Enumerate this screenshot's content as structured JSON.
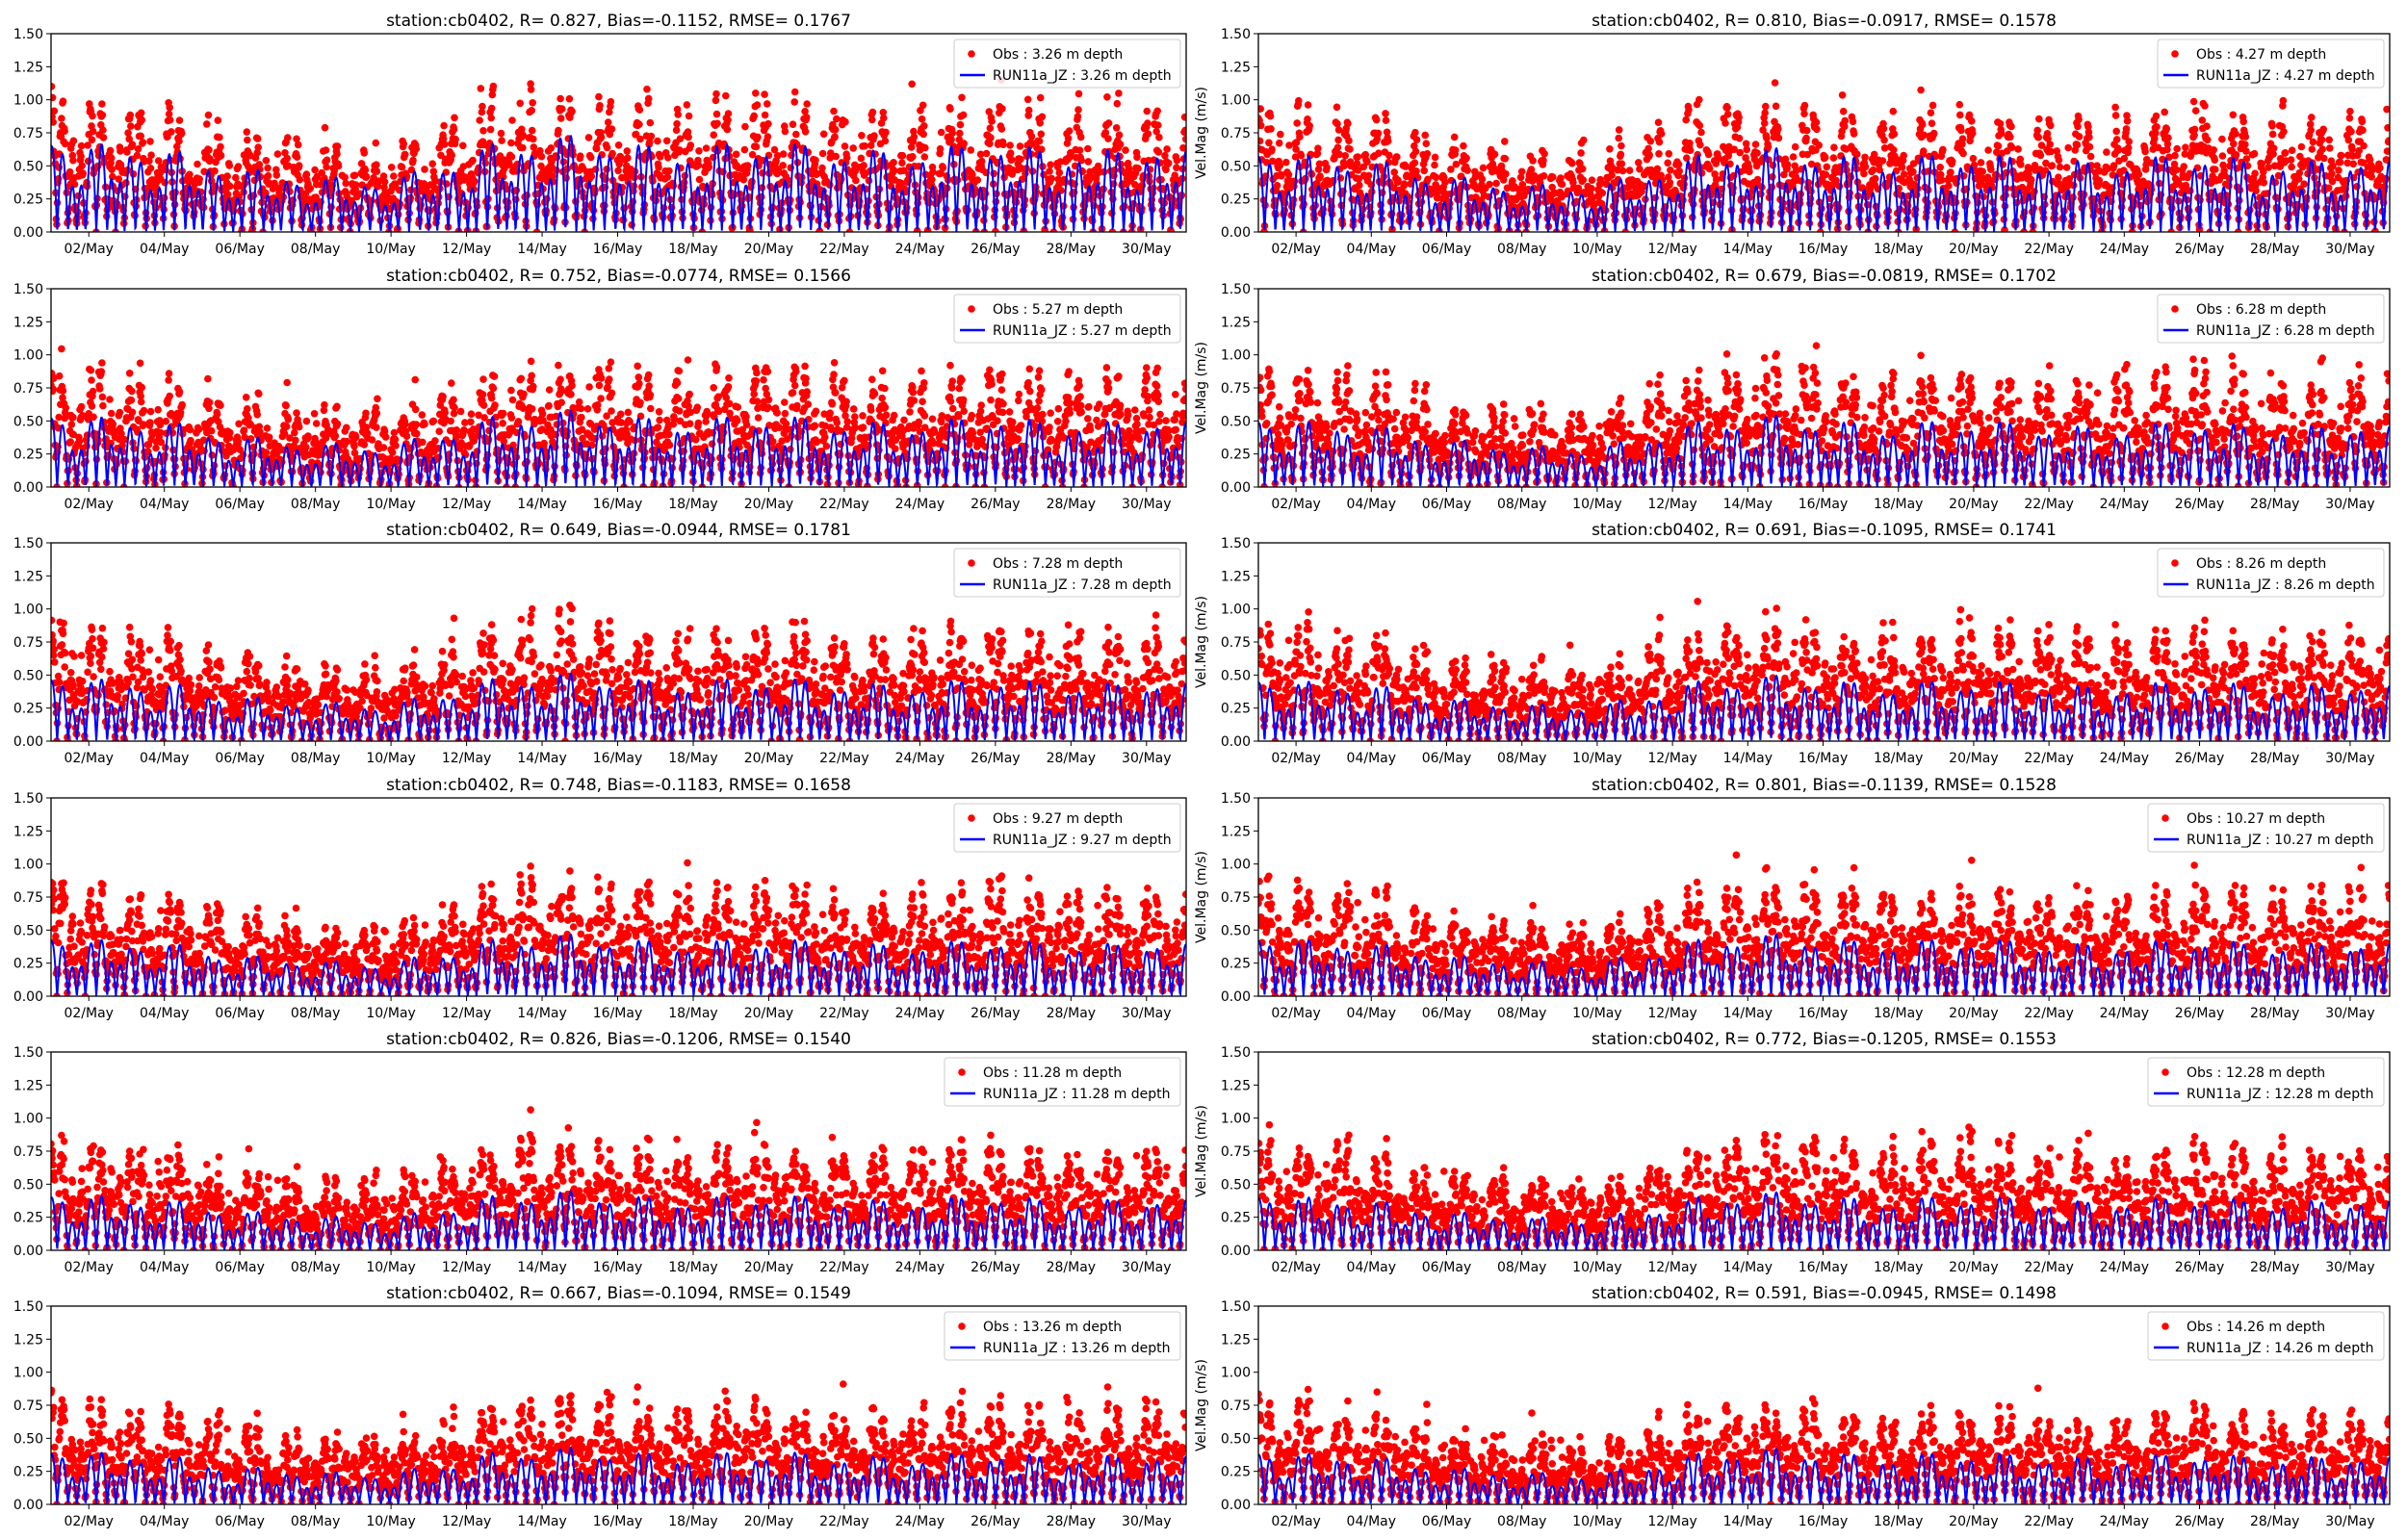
{
  "chart_data": {
    "type": "scatter+line",
    "layout": "6 rows x 2 columns",
    "station": "cb0402",
    "xlim_day_of_may": [
      1.0,
      31.05
    ],
    "x_tick_values": [
      2,
      4,
      6,
      8,
      10,
      12,
      14,
      16,
      18,
      20,
      22,
      24,
      26,
      28,
      30
    ],
    "x_tick_labels": [
      "02/May",
      "04/May",
      "06/May",
      "08/May",
      "10/May",
      "12/May",
      "14/May",
      "16/May",
      "18/May",
      "20/May",
      "22/May",
      "24/May",
      "26/May",
      "28/May",
      "30/May"
    ],
    "ylim": [
      0,
      1.5
    ],
    "y_tick_values": [
      0,
      0.25,
      0.5,
      0.75,
      1.0,
      1.25,
      1.5
    ],
    "y_tick_labels": [
      "0.00",
      "0.25",
      "0.50",
      "0.75",
      "1.00",
      "1.25",
      "1.50"
    ],
    "ylabel": "Vel.Mag (m/s)",
    "legend_placement": "top-right",
    "colors": {
      "obs": "#ff0000",
      "model": "#0000ff"
    },
    "daily_relative_envelope": [
      1.0,
      0.95,
      0.88,
      0.9,
      0.75,
      0.68,
      0.62,
      0.58,
      0.56,
      0.55,
      0.68,
      0.82,
      0.96,
      1.0,
      1.0,
      0.96,
      0.88,
      0.88,
      0.92,
      0.96,
      0.9,
      0.88,
      0.84,
      0.86,
      0.9,
      0.95,
      0.88,
      0.84,
      0.86,
      0.9,
      0.85
    ],
    "panels": [
      {
        "title": "station:cb0402, R= 0.827, Bias=-0.1152, RMSE= 0.1767",
        "obs_label": "Obs : 3.26 m depth",
        "model_label": "RUN11a_JZ : 3.26 m depth",
        "depth": 3.26,
        "R": 0.827,
        "Bias": -0.1152,
        "RMSE": 0.1767,
        "obs_peak": 1.0,
        "model_peak": 0.78,
        "show_ylabel": false
      },
      {
        "title": "station:cb0402, R= 0.810, Bias=-0.0917, RMSE= 0.1578",
        "obs_label": "Obs : 4.27 m depth",
        "model_label": "RUN11a_JZ : 4.27 m depth",
        "depth": 4.27,
        "R": 0.81,
        "Bias": -0.0917,
        "RMSE": 0.1578,
        "obs_peak": 0.95,
        "model_peak": 0.68,
        "show_ylabel": true
      },
      {
        "title": "station:cb0402, R= 0.752, Bias=-0.0774, RMSE= 0.1566",
        "obs_label": "Obs : 5.27 m depth",
        "model_label": "RUN11a_JZ : 5.27 m depth",
        "depth": 5.27,
        "R": 0.752,
        "Bias": -0.0774,
        "RMSE": 0.1566,
        "obs_peak": 0.92,
        "model_peak": 0.62,
        "show_ylabel": false
      },
      {
        "title": "station:cb0402, R= 0.679, Bias=-0.0819, RMSE= 0.1702",
        "obs_label": "Obs : 6.28 m depth",
        "model_label": "RUN11a_JZ : 6.28 m depth",
        "depth": 6.28,
        "R": 0.679,
        "Bias": -0.0819,
        "RMSE": 0.1702,
        "obs_peak": 0.9,
        "model_peak": 0.58,
        "show_ylabel": true
      },
      {
        "title": "station:cb0402, R= 0.649, Bias=-0.0944, RMSE= 0.1781",
        "obs_label": "Obs : 7.28 m depth",
        "model_label": "RUN11a_JZ : 7.28 m depth",
        "depth": 7.28,
        "R": 0.649,
        "Bias": -0.0944,
        "RMSE": 0.1781,
        "obs_peak": 0.88,
        "model_peak": 0.55,
        "show_ylabel": false
      },
      {
        "title": "station:cb0402, R= 0.691, Bias=-0.1095, RMSE= 0.1741",
        "obs_label": "Obs : 8.26 m depth",
        "model_label": "RUN11a_JZ : 8.26 m depth",
        "depth": 8.26,
        "R": 0.691,
        "Bias": -0.1095,
        "RMSE": 0.1741,
        "obs_peak": 0.88,
        "model_peak": 0.53,
        "show_ylabel": true
      },
      {
        "title": "station:cb0402, R= 0.748, Bias=-0.1183, RMSE= 0.1658",
        "obs_label": "Obs : 9.27 m depth",
        "model_label": "RUN11a_JZ : 9.27 m depth",
        "depth": 9.27,
        "R": 0.748,
        "Bias": -0.1183,
        "RMSE": 0.1658,
        "obs_peak": 0.85,
        "model_peak": 0.5,
        "show_ylabel": false
      },
      {
        "title": "station:cb0402, R= 0.801, Bias=-0.1139, RMSE= 0.1528",
        "obs_label": "Obs : 10.27 m depth",
        "model_label": "RUN11a_JZ : 10.27 m depth",
        "depth": 10.27,
        "R": 0.801,
        "Bias": -0.1139,
        "RMSE": 0.1528,
        "obs_peak": 0.84,
        "model_peak": 0.5,
        "show_ylabel": true
      },
      {
        "title": "station:cb0402, R= 0.826, Bias=-0.1206, RMSE= 0.1540",
        "obs_label": "Obs : 11.28 m depth",
        "model_label": "RUN11a_JZ : 11.28 m depth",
        "depth": 11.28,
        "R": 0.826,
        "Bias": -0.1206,
        "RMSE": 0.154,
        "obs_peak": 0.82,
        "model_peak": 0.48,
        "show_ylabel": false
      },
      {
        "title": "station:cb0402, R= 0.772, Bias=-0.1205, RMSE= 0.1553",
        "obs_label": "Obs : 12.28 m depth",
        "model_label": "RUN11a_JZ : 12.28 m depth",
        "depth": 12.28,
        "R": 0.772,
        "Bias": -0.1205,
        "RMSE": 0.1553,
        "obs_peak": 0.82,
        "model_peak": 0.47,
        "show_ylabel": true
      },
      {
        "title": "station:cb0402, R= 0.667, Bias=-0.1094, RMSE= 0.1549",
        "obs_label": "Obs : 13.26 m depth",
        "model_label": "RUN11a_JZ : 13.26 m depth",
        "depth": 13.26,
        "R": 0.667,
        "Bias": -0.1094,
        "RMSE": 0.1549,
        "obs_peak": 0.78,
        "model_peak": 0.46,
        "show_ylabel": false
      },
      {
        "title": "station:cb0402, R= 0.591, Bias=-0.0945, RMSE= 0.1498",
        "obs_label": "Obs : 14.26 m depth",
        "model_label": "RUN11a_JZ : 14.26 m depth",
        "depth": 14.26,
        "R": 0.591,
        "Bias": -0.0945,
        "RMSE": 0.1498,
        "obs_peak": 0.72,
        "model_peak": 0.45,
        "show_ylabel": true
      }
    ]
  }
}
